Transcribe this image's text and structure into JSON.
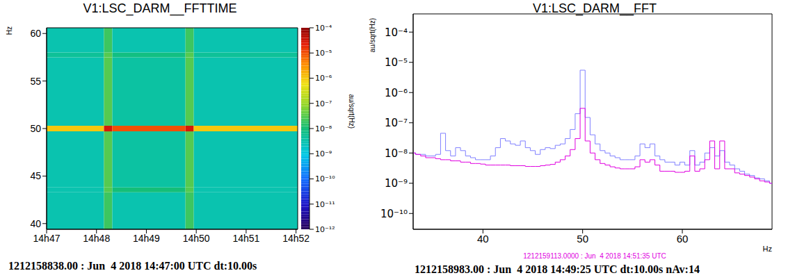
{
  "chart_data": [
    {
      "type": "heatmap",
      "title": "V1:LSC_DARM__FFTTIME",
      "y_label": "Hz",
      "xlim": [
        0,
        302
      ],
      "xticks": [
        {
          "value": 0,
          "label": "14h47"
        },
        {
          "value": 60,
          "label": "14h48"
        },
        {
          "value": 120,
          "label": "14h49"
        },
        {
          "value": 180,
          "label": "14h50"
        },
        {
          "value": 240,
          "label": "14h51"
        },
        {
          "value": 300,
          "label": "14h52"
        }
      ],
      "ylim": [
        39.4,
        60.6
      ],
      "yticks": [
        40,
        45,
        50,
        55,
        60
      ],
      "x_edges": [
        0,
        69,
        79,
        167,
        177,
        302
      ],
      "y_edges": [
        39.4,
        43.3,
        43.8,
        49.7,
        50.3,
        57.5,
        58,
        60.6
      ],
      "cells": [
        [
          3e-09,
          2e-08,
          3e-09,
          2e-08,
          3e-09
        ],
        [
          3e-09,
          3e-08,
          1e-08,
          3e-08,
          3e-09
        ],
        [
          3e-09,
          3e-08,
          4e-09,
          3e-08,
          3e-09
        ],
        [
          1e-06,
          3e-05,
          1e-05,
          3e-05,
          1e-06
        ],
        [
          3e-09,
          3e-08,
          4e-09,
          3e-08,
          3e-09
        ],
        [
          5e-09,
          3e-08,
          8e-09,
          3e-08,
          5e-09
        ],
        [
          3e-09,
          2e-08,
          3e-09,
          2e-08,
          3e-09
        ]
      ],
      "colorbar": {
        "label": "au/sqrt(Hz)",
        "log": true,
        "range": [
          1e-12,
          0.0001
        ],
        "ticks": [
          {
            "value": 1e-12,
            "label": "10⁻¹²"
          },
          {
            "value": 1e-11,
            "label": "10⁻¹¹"
          },
          {
            "value": 1e-10,
            "label": "10⁻¹⁰"
          },
          {
            "value": 1e-09,
            "label": "10⁻⁹"
          },
          {
            "value": 1e-08,
            "label": "10⁻⁸"
          },
          {
            "value": 1e-07,
            "label": "10⁻⁷"
          },
          {
            "value": 1e-06,
            "label": "10⁻⁶"
          },
          {
            "value": 1e-05,
            "label": "10⁻⁵"
          },
          {
            "value": 0.0001,
            "label": "10⁻⁴"
          }
        ]
      },
      "annotations": [
        "1212158838.00 : Jun  4 2018 14:47:00 UTC dt:10.00s"
      ]
    },
    {
      "type": "line",
      "title": "V1:LSC_DARM__FFT",
      "x_label": "Hz",
      "y_label": "au/sqrt(Hz)",
      "log": "y",
      "grid": false,
      "line_style": "step",
      "xlim": [
        33,
        69
      ],
      "xticks": [
        40,
        50,
        60
      ],
      "ylim": [
        3e-11,
        0.0004
      ],
      "yticks": [
        {
          "value": 1e-10,
          "label": "10⁻¹⁰"
        },
        {
          "value": 1e-09,
          "label": "10⁻⁹"
        },
        {
          "value": 1e-08,
          "label": "10⁻⁸"
        },
        {
          "value": 1e-07,
          "label": "10⁻⁷"
        },
        {
          "value": 1e-06,
          "label": "10⁻⁶"
        },
        {
          "value": 1e-05,
          "label": "10⁻⁵"
        },
        {
          "value": 0.0001,
          "label": "10⁻⁴"
        }
      ],
      "x": [
        33,
        33.5,
        34,
        34.5,
        35,
        35.5,
        36,
        36.5,
        37,
        37.5,
        38,
        38.5,
        39,
        39.5,
        40,
        40.5,
        41,
        41.5,
        42,
        42.5,
        43,
        43.5,
        44,
        44.5,
        45,
        45.5,
        46,
        46.5,
        47,
        47.5,
        48,
        48.5,
        49,
        49.5,
        50,
        50.5,
        51,
        51.5,
        52,
        52.5,
        53,
        53.5,
        54,
        54.5,
        55,
        55.5,
        56,
        56.5,
        57,
        57.5,
        58,
        58.5,
        59,
        59.5,
        60,
        60.5,
        61,
        61.5,
        62,
        62.5,
        63,
        63.5,
        64,
        64.5,
        65,
        65.5,
        66,
        66.5,
        67,
        67.5,
        68,
        68.5,
        69
      ],
      "series": [
        {
          "color": "#8080ff",
          "values": [
            1e-08,
            9e-09,
            9e-09,
            8e-09,
            8e-09,
            9e-09,
            4.5e-08,
            1.2e-08,
            8e-09,
            1.5e-08,
            1.2e-08,
            8e-09,
            7e-09,
            6e-09,
            6e-09,
            6e-09,
            8e-09,
            1.5e-08,
            3e-08,
            2.5e-08,
            2e-08,
            1.8e-08,
            2.5e-08,
            1.5e-08,
            1.2e-08,
            9e-09,
            1.3e-08,
            1.5e-08,
            1.4e-08,
            1.8e-08,
            2e-08,
            3e-08,
            6e-08,
            2e-07,
            5.5e-06,
            1.5e-07,
            4e-08,
            2e-08,
            1.2e-08,
            1e-08,
            8e-09,
            7e-09,
            6e-09,
            6e-09,
            6e-09,
            8e-09,
            2e-08,
            1.5e-08,
            2e-08,
            8e-09,
            6e-09,
            5e-09,
            5e-09,
            4e-09,
            5e-09,
            4e-09,
            1.2e-08,
            4e-09,
            5e-09,
            1e-08,
            1.5e-08,
            8e-09,
            1.2e-08,
            5e-09,
            4e-09,
            3e-09,
            2.5e-09,
            2e-09,
            1.8e-09,
            1.5e-09,
            1.4e-09,
            1.2e-09,
            1e-09
          ]
        },
        {
          "name": "1212159113.0000 : Jun  4 2018 14:51:35 UTC",
          "color": "#e000e0",
          "values": [
            1e-08,
            9e-09,
            8e-09,
            7e-09,
            7e-09,
            6.5e-09,
            6e-09,
            6e-09,
            5.5e-09,
            5.5e-09,
            5e-09,
            5e-09,
            4.5e-09,
            4.5e-09,
            4.3e-09,
            4e-09,
            4e-09,
            4e-09,
            4e-09,
            4e-09,
            3.8e-09,
            3.8e-09,
            3.8e-09,
            3.6e-09,
            3.6e-09,
            3.6e-09,
            3.8e-09,
            4e-09,
            4.2e-09,
            5e-09,
            6e-09,
            8e-09,
            1.3e-08,
            3e-08,
            3e-07,
            2.5e-08,
            1e-08,
            6e-09,
            4.5e-09,
            4e-09,
            3.5e-09,
            3.2e-09,
            3e-09,
            3e-09,
            3e-09,
            3.5e-09,
            6e-09,
            5e-09,
            6e-09,
            4e-09,
            2.5e-09,
            2.5e-09,
            2.5e-09,
            2.3e-09,
            2.3e-09,
            2.5e-09,
            8e-09,
            2.5e-09,
            3e-09,
            6e-09,
            2.5e-08,
            3e-09,
            2.5e-08,
            3e-09,
            3e-09,
            2.2e-09,
            2e-09,
            1.8e-09,
            1.6e-09,
            1.4e-09,
            1.2e-09,
            1.1e-09,
            1e-09
          ]
        }
      ],
      "annotations": [
        "1212158983.00 : Jun  4 2018 14:49:25 UTC dt:10.00s nAv:14"
      ]
    }
  ]
}
